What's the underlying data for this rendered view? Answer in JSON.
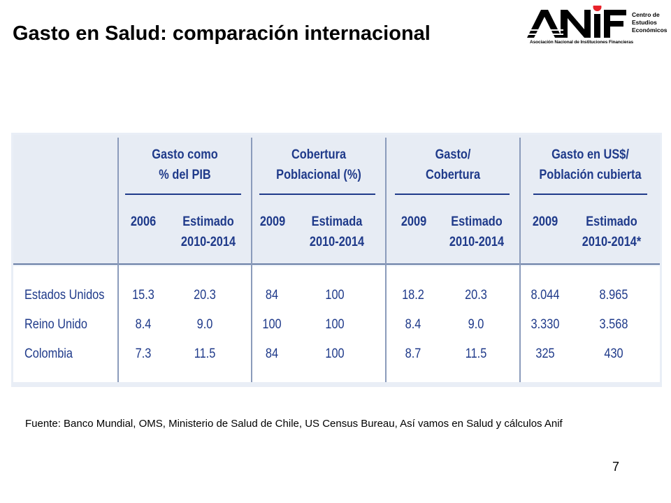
{
  "slide": {
    "title": "Gasto en Salud: comparación internacional",
    "page_number": "7",
    "source": "Fuente: Banco Mundial, OMS, Ministerio de Salud de Chile, US Census Bureau, Así vamos en Salud y cálculos Anif"
  },
  "logo": {
    "wordmark": "ANIF",
    "subtitle": "Asociación Nacional de Instituciones Financieras",
    "centro": [
      "Centro de",
      "Estudios",
      "Económicos"
    ],
    "accent_color": "#e8222a"
  },
  "table": {
    "groups": [
      {
        "lines": [
          "Gasto como",
          "% del PIB"
        ],
        "cols": [
          [
            "2006"
          ],
          [
            "Estimado",
            "2010-2014"
          ]
        ]
      },
      {
        "lines": [
          "Cobertura",
          "Poblacional (%)"
        ],
        "cols": [
          [
            "2009"
          ],
          [
            "Estimada",
            "2010-2014"
          ]
        ]
      },
      {
        "lines": [
          "Gasto/",
          "Cobertura"
        ],
        "cols": [
          [
            "2009"
          ],
          [
            "Estimado",
            "2010-2014"
          ]
        ]
      },
      {
        "lines": [
          "Gasto en US$/",
          "Población cubierta"
        ],
        "cols": [
          [
            "2009"
          ],
          [
            "Estimado",
            "2010-2014*"
          ]
        ]
      }
    ],
    "rows": [
      {
        "label": "Estados Unidos",
        "values": [
          "15.3",
          "20.3",
          "84",
          "100",
          "18.2",
          "20.3",
          "8.044",
          "8.965"
        ]
      },
      {
        "label": "Reino Unido",
        "values": [
          "8.4",
          "9.0",
          "100",
          "100",
          "8.4",
          "9.0",
          "3.330",
          "3.568"
        ]
      },
      {
        "label": "Colombia",
        "values": [
          "7.3",
          "11.5",
          "84",
          "100",
          "8.7",
          "11.5",
          "325",
          "430"
        ]
      }
    ],
    "text_color": "#1f3a8a",
    "header_bg": "#e7ecf4"
  }
}
